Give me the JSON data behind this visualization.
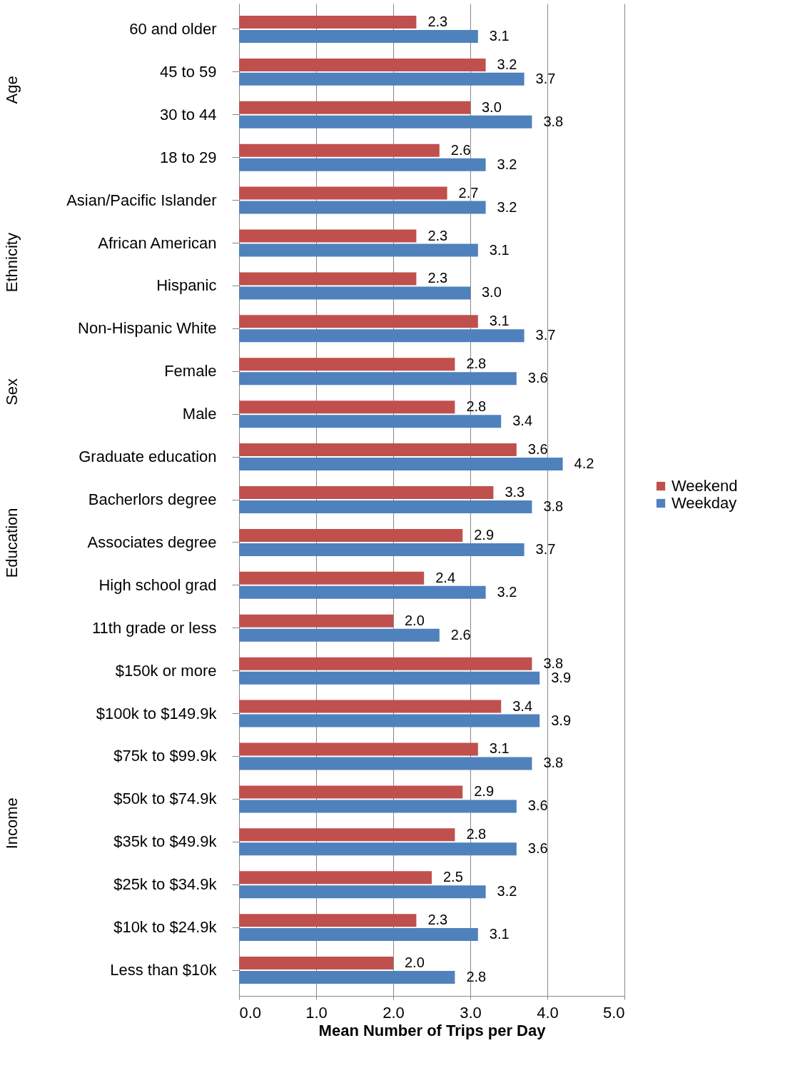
{
  "chart_data": {
    "type": "bar",
    "orientation": "horizontal",
    "xlabel": "Mean Number of Trips per Day",
    "categories": [
      "60 and older",
      "45 to 59",
      "30 to 44",
      "18 to 29",
      "Asian/Pacific Islander",
      "African American",
      "Hispanic",
      "Non-Hispanic White",
      "Female",
      "Male",
      "Graduate education",
      "Bacherlors degree",
      "Associates degree",
      "High school grad",
      "11th grade or less",
      "$150k or more",
      "$100k to $149.9k",
      "$75k to $99.9k",
      "$50k to $74.9k",
      "$35k to $49.9k",
      "$25k to $34.9k",
      "$10k to $24.9k",
      "Less than $10k"
    ],
    "series": [
      {
        "name": "Weekend",
        "color": "#c0504d",
        "values": [
          2.3,
          3.2,
          3.0,
          2.6,
          2.7,
          2.3,
          2.3,
          3.1,
          2.8,
          2.8,
          3.6,
          3.3,
          2.9,
          2.4,
          2.0,
          3.8,
          3.4,
          3.1,
          2.9,
          2.8,
          2.5,
          2.3,
          2.0
        ],
        "value_labels": [
          "2.3",
          "3.2",
          "3.0",
          "2.6",
          "2.7",
          "2.3",
          "2.3",
          "3.1",
          "2.8",
          "2.8",
          "3.6",
          "3.3",
          "2.9",
          "2.4",
          "2.0",
          "3.8",
          "3.4",
          "3.1",
          "2.9",
          "2.8",
          "2.5",
          "2.3",
          "2.0"
        ]
      },
      {
        "name": "Weekday",
        "color": "#4f81bd",
        "values": [
          3.1,
          3.7,
          3.8,
          3.2,
          3.2,
          3.1,
          3.0,
          3.7,
          3.6,
          3.4,
          4.2,
          3.8,
          3.7,
          3.2,
          2.6,
          3.9,
          3.9,
          3.8,
          3.6,
          3.6,
          3.2,
          3.1,
          2.8
        ],
        "value_labels": [
          "3.1",
          "3.7",
          "3.8",
          "3.2",
          "3.2",
          "3.1",
          "3.0",
          "3.7",
          "3.6",
          "3.4",
          "4.2",
          "3.8",
          "3.7",
          "3.2",
          "2.6",
          "3.9",
          "3.9",
          "3.8",
          "3.6",
          "3.6",
          "3.2",
          "3.1",
          "2.8"
        ]
      }
    ],
    "xlim": [
      0,
      5
    ],
    "xticks": [
      {
        "value": 0,
        "label": "0.0"
      },
      {
        "value": 1,
        "label": "1.0"
      },
      {
        "value": 2,
        "label": "2.0"
      },
      {
        "value": 3,
        "label": "3.0"
      },
      {
        "value": 4,
        "label": "4.0"
      },
      {
        "value": 5,
        "label": "5.0"
      }
    ],
    "annotations": [
      "Age",
      "Ethnicity",
      "Sex",
      "Education",
      "Income"
    ],
    "grid": "x",
    "legend": "right"
  }
}
